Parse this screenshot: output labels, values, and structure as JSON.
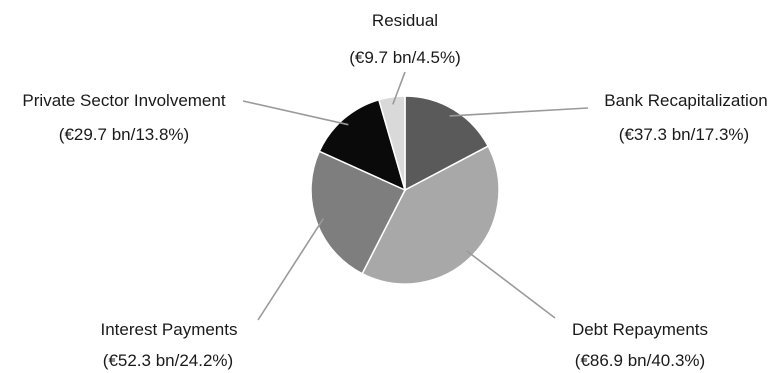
{
  "chart_data": {
    "type": "pie",
    "unit": "€ bn",
    "slices": [
      {
        "name": "Bank Recapitalization",
        "value": 37.3,
        "percent": 17.3,
        "label": "(€37.3 bn/17.3%)",
        "color": "#5a5a5a"
      },
      {
        "name": "Debt Repayments",
        "value": 86.9,
        "percent": 40.3,
        "label": "(€86.9 bn/40.3%)",
        "color": "#a8a8a8"
      },
      {
        "name": "Interest Payments",
        "value": 52.3,
        "percent": 24.2,
        "label": "(€52.3 bn/24.2%)",
        "color": "#7e7e7e"
      },
      {
        "name": "Private Sector Involvement",
        "value": 29.7,
        "percent": 13.8,
        "label": "(€29.7 bn/13.8%)",
        "color": "#0a0a0a"
      },
      {
        "name": "Residual",
        "value": 9.7,
        "percent": 4.5,
        "label": "(€9.7 bn/4.5%)",
        "color": "#d9d9d9"
      }
    ]
  }
}
